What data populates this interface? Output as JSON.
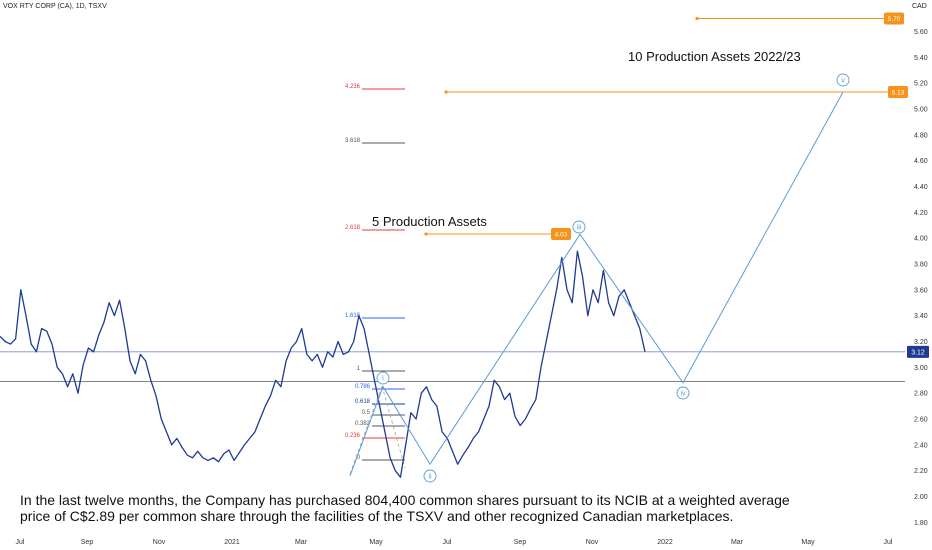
{
  "symbol": "VOX RTY CORP (CA), 1D, TSXV",
  "currency": "CAD",
  "caption": "In the last twelve months, the Company has purchased 804,400 common shares pursuant to its NCIB at a weighted average price of C$2.89 per common share through the facilities of the TSXV and other recognized Canadian marketplaces.",
  "colors": {
    "price_line": "#1f3a93",
    "projection": "#5b9bd5",
    "orange": "#f7931a",
    "last_price_line": "#7b8cd6",
    "grey_line": "#808080"
  },
  "chart_data": {
    "type": "line",
    "yaxis_ticks": [
      "1.80",
      "2.00",
      "2.20",
      "2.40",
      "2.60",
      "2.80",
      "3.00",
      "3.20",
      "3.40",
      "3.60",
      "3.80",
      "4.00",
      "4.20",
      "4.40",
      "4.60",
      "4.80",
      "5.00",
      "5.20",
      "5.40",
      "5.60"
    ],
    "xaxis_ticks": [
      "Jul",
      "Sep",
      "Nov",
      "2021",
      "Mar",
      "May",
      "Jul",
      "Sep",
      "Nov",
      "2022",
      "Mar",
      "May",
      "Jul"
    ],
    "ylim": [
      1.72,
      5.82
    ],
    "series": [
      {
        "values": [
          3.24,
          3.2,
          3.18,
          3.22,
          3.6,
          3.4,
          3.18,
          3.12,
          3.3,
          3.28,
          3.18,
          3.0,
          2.95,
          2.85,
          2.95,
          2.8,
          3.02,
          3.15,
          3.12,
          3.25,
          3.35,
          3.5,
          3.4,
          3.52,
          3.3,
          3.05,
          2.95,
          3.1,
          3.05,
          2.9,
          2.78,
          2.6,
          2.5,
          2.4,
          2.45,
          2.38,
          2.32,
          2.3,
          2.35,
          2.3,
          2.28,
          2.3,
          2.27,
          2.33,
          2.36,
          2.28,
          2.34,
          2.4,
          2.45,
          2.5,
          2.6,
          2.7,
          2.78,
          2.9,
          2.85,
          3.05,
          3.15,
          3.2,
          3.3,
          3.1,
          3.05,
          3.1,
          3.0,
          3.12,
          3.08,
          3.2,
          3.1,
          3.12,
          3.2,
          3.4,
          3.3,
          3.1,
          2.9,
          2.7,
          2.5,
          2.3,
          2.2,
          2.15,
          2.4,
          2.65,
          2.6,
          2.8,
          2.85,
          2.75,
          2.7,
          2.5,
          2.45,
          2.35,
          2.25,
          2.32,
          2.38,
          2.45,
          2.5,
          2.6,
          2.7,
          2.9,
          2.85,
          2.75,
          2.8,
          2.62,
          2.55,
          2.6,
          2.68,
          2.75,
          3.0,
          3.2,
          3.4,
          3.6,
          3.85,
          3.6,
          3.5,
          3.9,
          3.7,
          3.4,
          3.6,
          3.5,
          3.75,
          3.5,
          3.4,
          3.55,
          3.6,
          3.5,
          3.4,
          3.3,
          3.12
        ],
        "x_start": "2020-06-22",
        "x_end": "2021-12-10"
      }
    ],
    "projection_waves": [
      {
        "label": "i",
        "price": 2.85
      },
      {
        "label": "ii",
        "price": 2.25
      },
      {
        "label": "iii",
        "price": 4.03
      },
      {
        "label": "iv",
        "price": 2.88
      },
      {
        "label": "v",
        "price": 5.13
      }
    ],
    "fib_levels": [
      {
        "label": "4.236",
        "color": "#e03c3c"
      },
      {
        "label": "3.618",
        "color": "#555555"
      },
      {
        "label": "2.618",
        "color": "#e03c3c"
      },
      {
        "label": "1.618",
        "color": "#2962ff"
      },
      {
        "label": "1",
        "color": "#555555"
      },
      {
        "label": "0.786",
        "color": "#2962ff"
      },
      {
        "label": "0.618",
        "color": "#1f3a93"
      },
      {
        "label": "0.5",
        "color": "#555555"
      },
      {
        "label": "0.382",
        "color": "#555555"
      },
      {
        "label": "0.236",
        "color": "#e03c3c"
      },
      {
        "label": "0",
        "color": "#555555"
      }
    ],
    "price_tags": [
      {
        "label": "5.70",
        "price": 5.7
      },
      {
        "label": "5.13",
        "price": 5.13
      },
      {
        "label": "4.03",
        "price": 4.03
      }
    ],
    "last_price": {
      "label": "3.12",
      "price": 3.12
    },
    "annotations": [
      "10 Production Assets 2022/23",
      "5 Production Assets"
    ]
  }
}
